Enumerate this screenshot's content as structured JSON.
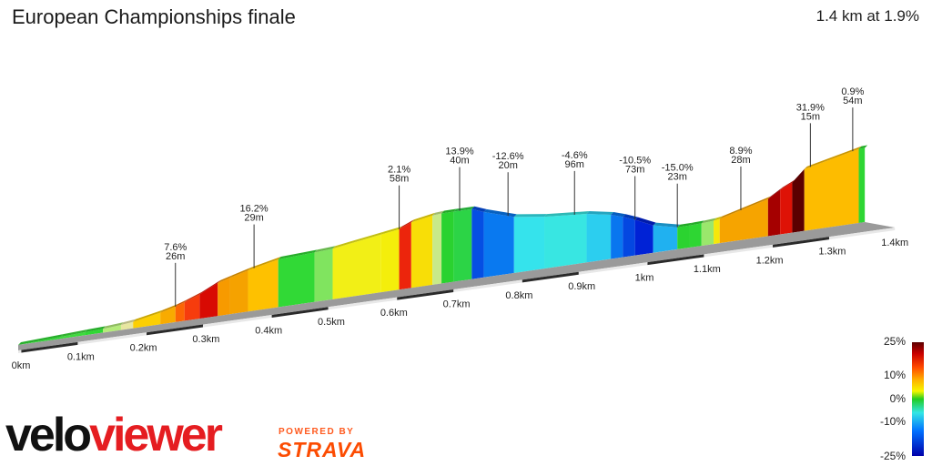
{
  "header": {
    "title": "European Championships finale",
    "summary": "1.4 km at 1.9%"
  },
  "chart_data": {
    "type": "area",
    "xlabel": "",
    "ylabel": "",
    "x_tick_labels": [
      "0km",
      "0.1km",
      "0.2km",
      "0.3km",
      "0.4km",
      "0.5km",
      "0.6km",
      "0.7km",
      "0.8km",
      "0.9km",
      "1km",
      "1.1km",
      "1.2km",
      "1.3km",
      "1.4km"
    ],
    "profile": {
      "x_km": [
        0,
        0.07,
        0.11,
        0.14,
        0.17,
        0.19,
        0.235,
        0.26,
        0.275,
        0.3,
        0.33,
        0.35,
        0.38,
        0.43,
        0.49,
        0.52,
        0.6,
        0.63,
        0.65,
        0.685,
        0.7,
        0.72,
        0.75,
        0.77,
        0.82,
        0.87,
        0.94,
        0.98,
        1.0,
        1.02,
        1.05,
        1.09,
        1.11,
        1.13,
        1.15,
        1.16,
        1.24,
        1.26,
        1.28,
        1.3,
        1.39
      ],
      "grade_pct": [
        1.5,
        1.6,
        1.2,
        2.5,
        3.5,
        6.5,
        8.5,
        10.8,
        12.5,
        16.2,
        9.2,
        9.0,
        7.2,
        1.5,
        2.1,
        4.9,
        5.1,
        13.9,
        5.8,
        2.9,
        0.1,
        -0.2,
        -12.6,
        -10.3,
        -4.6,
        -2.6,
        -6.0,
        -10.5,
        -13.0,
        -15.0,
        -7.5,
        0.3,
        0.9,
        2.3,
        5.4,
        8.9,
        20.0,
        15.5,
        31.9,
        7.5,
        0.9
      ]
    },
    "annotations": [
      {
        "x_km": 0.26,
        "grade": "7.6%",
        "length": "26m"
      },
      {
        "x_km": 0.39,
        "grade": "16.2%",
        "length": "29m"
      },
      {
        "x_km": 0.63,
        "grade": "2.1%",
        "length": "58m"
      },
      {
        "x_km": 0.73,
        "grade": "13.9%",
        "length": "40m"
      },
      {
        "x_km": 0.81,
        "grade": "-12.6%",
        "length": "20m"
      },
      {
        "x_km": 0.92,
        "grade": "-4.6%",
        "length": "96m"
      },
      {
        "x_km": 1.02,
        "grade": "-10.5%",
        "length": "73m"
      },
      {
        "x_km": 1.09,
        "grade": "-15.0%",
        "length": "23m"
      },
      {
        "x_km": 1.195,
        "grade": "8.9%",
        "length": "28m"
      },
      {
        "x_km": 1.31,
        "grade": "31.9%",
        "length": "15m"
      },
      {
        "x_km": 1.38,
        "grade": "0.9%",
        "length": "54m"
      }
    ],
    "legend": {
      "ticks": [
        "25%",
        "10%",
        "0%",
        "-10%",
        "-25%"
      ]
    }
  },
  "brand": {
    "part1": "velo",
    "part2": "viewer",
    "powered": "POWERED BY",
    "strava": "STRAVA"
  }
}
